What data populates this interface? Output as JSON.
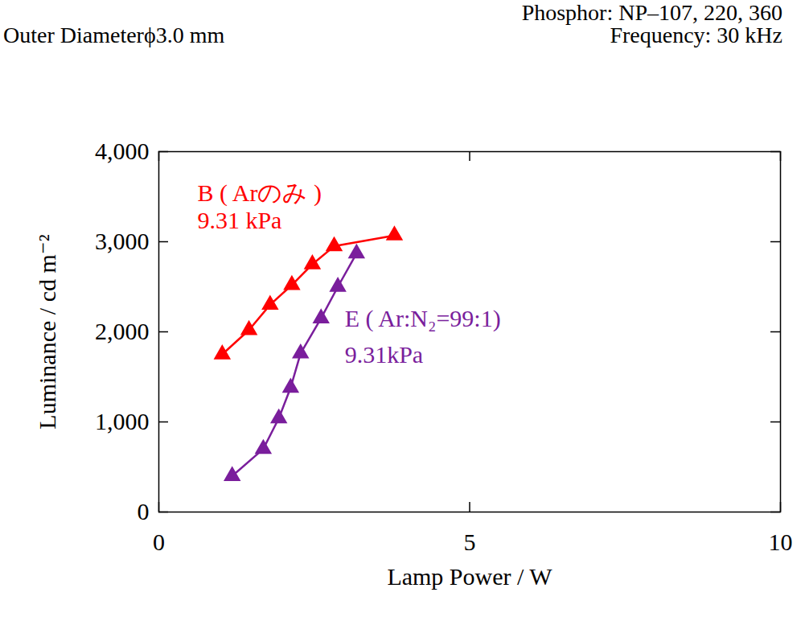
{
  "chart_data": {
    "type": "line",
    "header": {
      "phosphor": "Phosphor: NP–107, 220, 360",
      "diameter": "Outer Diameterϕ3.0 mm",
      "frequency": "Frequency: 30 kHz"
    },
    "x_label": "Lamp Power / W",
    "y_label": "Luminance / cd m⁻²",
    "xlim": [
      0,
      10
    ],
    "xticks": [
      0,
      5,
      10
    ],
    "ylim": [
      0,
      4000
    ],
    "yticks": [
      0,
      1000,
      2000,
      3000,
      4000
    ],
    "grid": false,
    "marker": "triangle",
    "series": [
      {
        "name": "B ( Arのみ )",
        "color": "#ff0000",
        "x": [
          1.02,
          1.45,
          1.79,
          2.14,
          2.47,
          2.82,
          3.79
        ],
        "values": [
          1750,
          2020,
          2300,
          2520,
          2750,
          2950,
          3070
        ]
      },
      {
        "name": "E ( Ar:N₂=99:1)",
        "color": "#7a1e9c",
        "x": [
          1.18,
          1.68,
          1.93,
          2.12,
          2.28,
          2.61,
          2.88,
          3.18
        ],
        "values": [
          400,
          700,
          1040,
          1380,
          1760,
          2150,
          2500,
          2870
        ]
      }
    ],
    "annotations": [
      {
        "text": "B ( Arのみ )",
        "x": 0.62,
        "y": 3450,
        "color": "#ff0000"
      },
      {
        "text": "9.31 kPa",
        "x": 0.62,
        "y": 3150,
        "color": "#ff0000"
      },
      {
        "text": "E ( Ar:N₂=99:1)",
        "x": 2.99,
        "y": 2060,
        "color": "#7a1e9c"
      },
      {
        "text": "9.31kPa",
        "x": 2.99,
        "y": 1660,
        "color": "#7a1e9c"
      }
    ]
  }
}
